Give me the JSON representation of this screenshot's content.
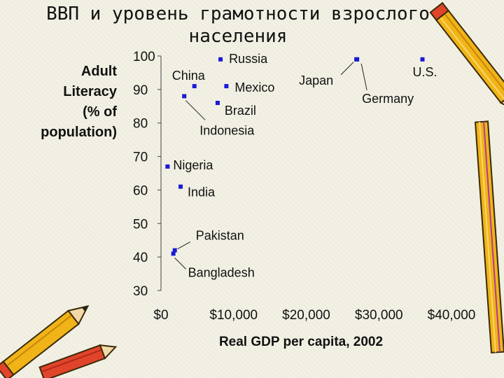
{
  "title": "ВВП и уровень грамотности взрослого населения",
  "chart_data": {
    "type": "scatter",
    "title": "ВВП и уровень грамотности взрослого населения",
    "xlabel": "Real GDP per capita, 2002",
    "ylabel": "Adult Literacy (% of population)",
    "ylabel_lines": [
      "Adult",
      "Literacy",
      "(% of",
      "population)"
    ],
    "xlim": [
      0,
      40000
    ],
    "ylim": [
      30,
      100
    ],
    "xticks": [
      0,
      10000,
      20000,
      30000,
      40000
    ],
    "xtick_labels": [
      "$0",
      "$10,000",
      "$20,000",
      "$30,000",
      "$40,000"
    ],
    "yticks": [
      30,
      40,
      50,
      60,
      70,
      80,
      90,
      100
    ],
    "ytick_labels": [
      "30",
      "40",
      "50",
      "60",
      "70",
      "80",
      "90",
      "100"
    ],
    "points": [
      {
        "label": "U.S.",
        "x": 36000,
        "y": 99
      },
      {
        "label": "Germany",
        "x": 27000,
        "y": 99
      },
      {
        "label": "Japan",
        "x": 26900,
        "y": 99
      },
      {
        "label": "Russia",
        "x": 8200,
        "y": 99
      },
      {
        "label": "Mexico",
        "x": 9000,
        "y": 91
      },
      {
        "label": "Brazil",
        "x": 7800,
        "y": 86
      },
      {
        "label": "China",
        "x": 4600,
        "y": 91
      },
      {
        "label": "Indonesia",
        "x": 3200,
        "y": 88
      },
      {
        "label": "Nigeria",
        "x": 900,
        "y": 67
      },
      {
        "label": "India",
        "x": 2700,
        "y": 61
      },
      {
        "label": "Pakistan",
        "x": 1900,
        "y": 42
      },
      {
        "label": "Bangladesh",
        "x": 1700,
        "y": 41
      }
    ],
    "marker_color": "#1a1ad6"
  }
}
